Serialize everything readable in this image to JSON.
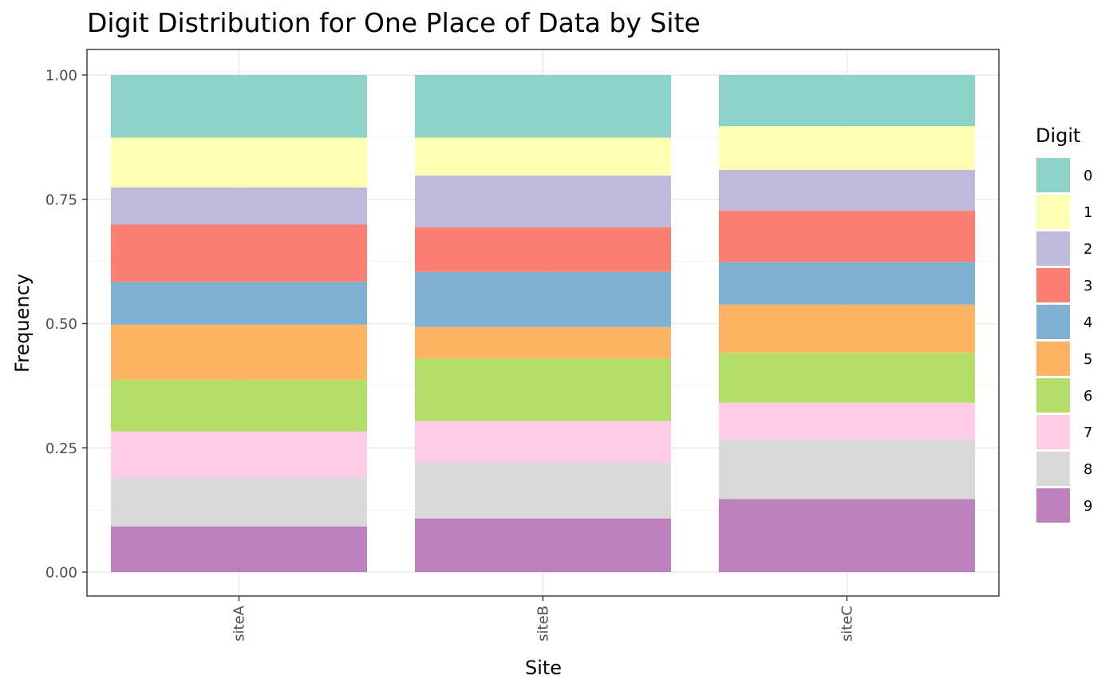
{
  "chart_data": {
    "type": "bar",
    "stacked": true,
    "title": "Digit Distribution for One Place of Data by Site",
    "xlabel": "Site",
    "ylabel": "Frequency",
    "ylim": [
      0,
      1
    ],
    "yticks": [
      "0.00",
      "0.25",
      "0.50",
      "0.75",
      "1.00"
    ],
    "ytick_values": [
      0,
      0.25,
      0.5,
      0.75,
      1
    ],
    "grid": true,
    "legend_position": "right",
    "legend_title": "Digit",
    "categories": [
      "siteA",
      "siteB",
      "siteC"
    ],
    "series": [
      {
        "name": "9",
        "color": "#BC80BD",
        "values": [
          0.092,
          0.108,
          0.147
        ]
      },
      {
        "name": "8",
        "color": "#D9D9D9",
        "values": [
          0.098,
          0.112,
          0.119
        ]
      },
      {
        "name": "7",
        "color": "#FCCDE5",
        "values": [
          0.093,
          0.084,
          0.075
        ]
      },
      {
        "name": "6",
        "color": "#B3DE69",
        "values": [
          0.104,
          0.126,
          0.1
        ]
      },
      {
        "name": "5",
        "color": "#FDB462",
        "values": [
          0.111,
          0.063,
          0.097
        ]
      },
      {
        "name": "4",
        "color": "#80B1D3",
        "values": [
          0.086,
          0.111,
          0.086
        ]
      },
      {
        "name": "3",
        "color": "#FB8072",
        "values": [
          0.115,
          0.09,
          0.103
        ]
      },
      {
        "name": "2",
        "color": "#BEBADA",
        "values": [
          0.075,
          0.104,
          0.082
        ]
      },
      {
        "name": "1",
        "color": "#FFFFB3",
        "values": [
          0.1,
          0.076,
          0.088
        ]
      },
      {
        "name": "0",
        "color": "#8DD3C7",
        "values": [
          0.126,
          0.126,
          0.103
        ]
      }
    ]
  }
}
